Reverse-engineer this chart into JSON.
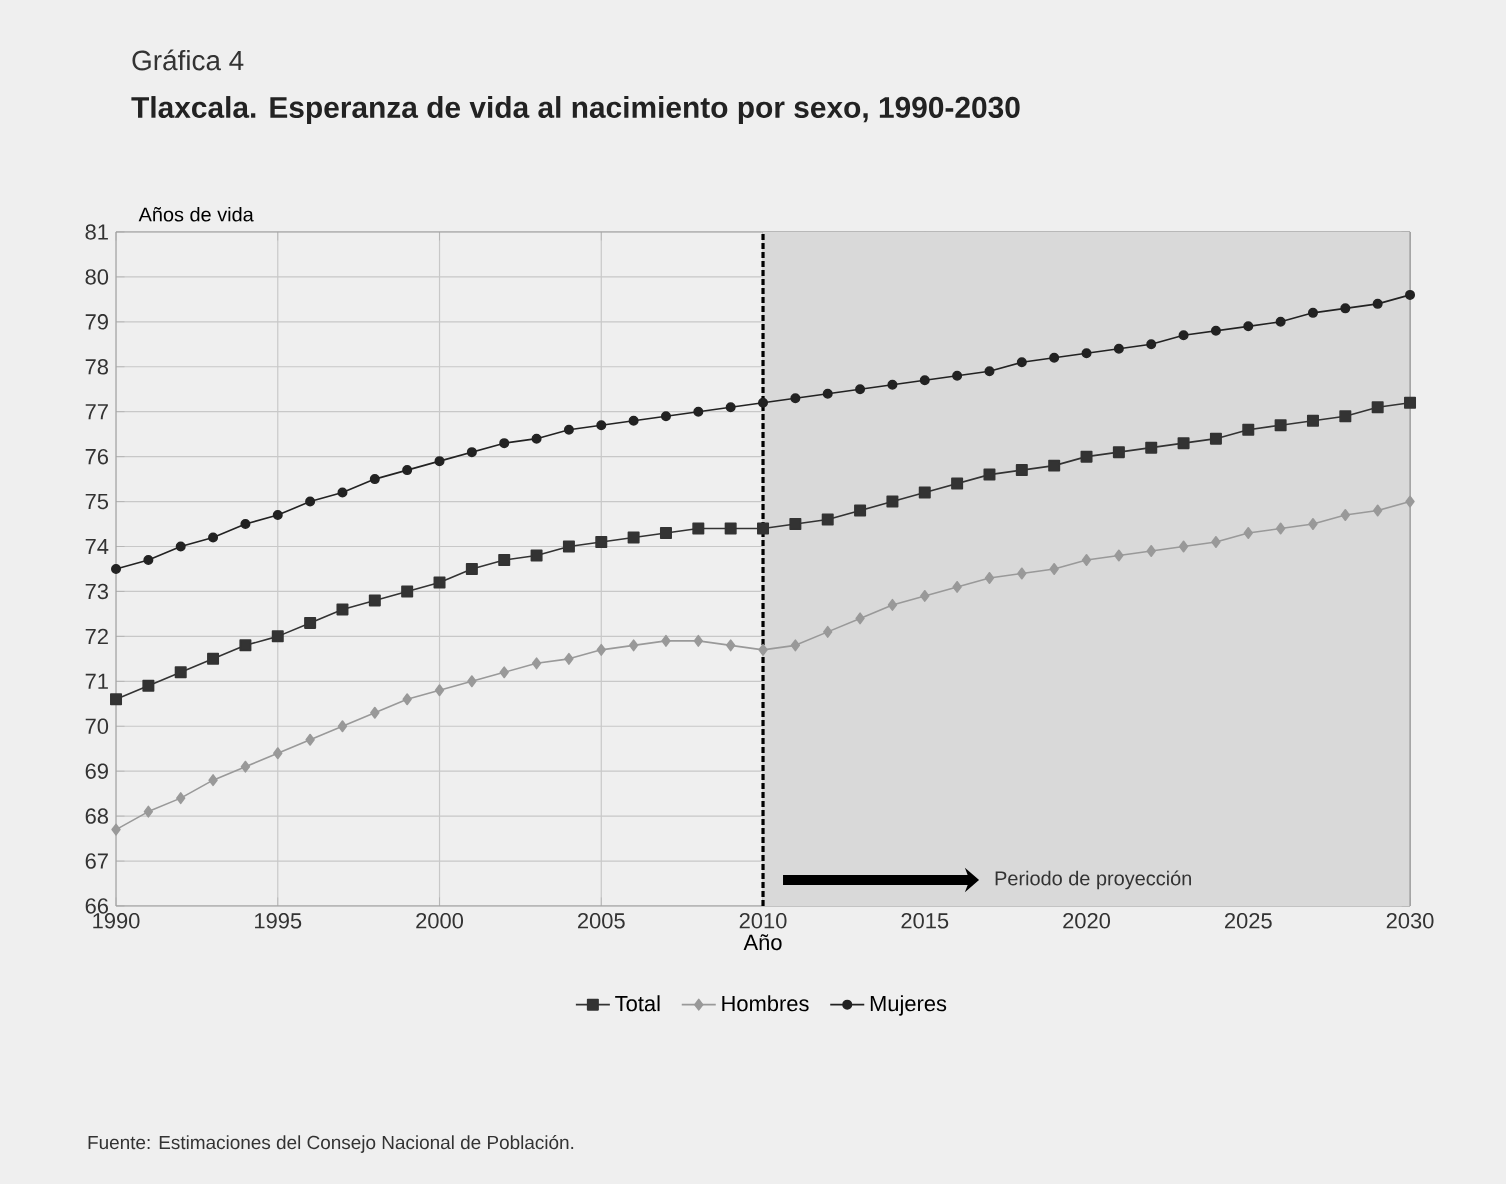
{
  "chart_data": {
    "type": "line",
    "title": "Gráfica 4",
    "subtitle": "Tlaxcala. Esperanza de vida al nacimiento por sexo, 1990-2030",
    "xlabel": "Año",
    "ylabel": "Años de vida",
    "x": [
      1990,
      1991,
      1992,
      1993,
      1994,
      1995,
      1996,
      1997,
      1998,
      1999,
      2000,
      2001,
      2002,
      2003,
      2004,
      2005,
      2006,
      2007,
      2008,
      2009,
      2010,
      2011,
      2012,
      2013,
      2014,
      2015,
      2016,
      2017,
      2018,
      2019,
      2020,
      2021,
      2022,
      2023,
      2024,
      2025,
      2026,
      2027,
      2028,
      2029,
      2030
    ],
    "series": [
      {
        "name": "Total",
        "color": "#333333",
        "marker": "square",
        "values": [
          70.6,
          70.9,
          71.2,
          71.5,
          71.8,
          72.0,
          72.3,
          72.6,
          72.8,
          73.0,
          73.2,
          73.5,
          73.7,
          73.8,
          74.0,
          74.1,
          74.2,
          74.3,
          74.4,
          74.4,
          74.4,
          74.5,
          74.6,
          74.8,
          75.0,
          75.2,
          75.4,
          75.6,
          75.7,
          75.8,
          76.0,
          76.1,
          76.2,
          76.3,
          76.4,
          76.6,
          76.7,
          76.8,
          76.9,
          77.1,
          77.2
        ]
      },
      {
        "name": "Hombres",
        "color": "#999999",
        "marker": "diamond",
        "values": [
          67.7,
          68.1,
          68.4,
          68.8,
          69.1,
          69.4,
          69.7,
          70.0,
          70.3,
          70.6,
          70.8,
          71.0,
          71.2,
          71.4,
          71.5,
          71.7,
          71.8,
          71.9,
          71.9,
          71.8,
          71.7,
          71.8,
          72.1,
          72.4,
          72.7,
          72.9,
          73.1,
          73.3,
          73.4,
          73.5,
          73.7,
          73.8,
          73.9,
          74.0,
          74.1,
          74.3,
          74.4,
          74.5,
          74.7,
          74.8,
          75.0
        ]
      },
      {
        "name": "Mujeres",
        "color": "#222222",
        "marker": "circle",
        "values": [
          73.5,
          73.7,
          74.0,
          74.2,
          74.5,
          74.7,
          75.0,
          75.2,
          75.5,
          75.7,
          75.9,
          76.1,
          76.3,
          76.4,
          76.6,
          76.7,
          76.8,
          76.9,
          77.0,
          77.1,
          77.2,
          77.3,
          77.4,
          77.5,
          77.6,
          77.7,
          77.8,
          77.9,
          78.1,
          78.2,
          78.3,
          78.4,
          78.5,
          78.7,
          78.8,
          78.9,
          79.0,
          79.2,
          79.3,
          79.4,
          79.6
        ]
      }
    ],
    "xlim": [
      1990,
      2030
    ],
    "xticks": [
      1990,
      1995,
      2000,
      2005,
      2010,
      2015,
      2020,
      2025,
      2030
    ],
    "ylim": [
      66,
      81
    ],
    "yticks": [
      66,
      67,
      68,
      69,
      70,
      71,
      72,
      73,
      74,
      75,
      76,
      77,
      78,
      79,
      80,
      81
    ],
    "ref_lines": [
      {
        "axis": "x",
        "value": 2010,
        "color": "#000000",
        "line_style": "dashed"
      }
    ],
    "bands": [
      {
        "axis": "x",
        "from": 2010,
        "to": 2030,
        "label": "Periodo de proyección",
        "color": "#d9d9d9"
      }
    ],
    "grid": true,
    "legend": "bottom",
    "annotations": [
      "Fuente: Estimaciones del Consejo Nacional de Población."
    ]
  }
}
